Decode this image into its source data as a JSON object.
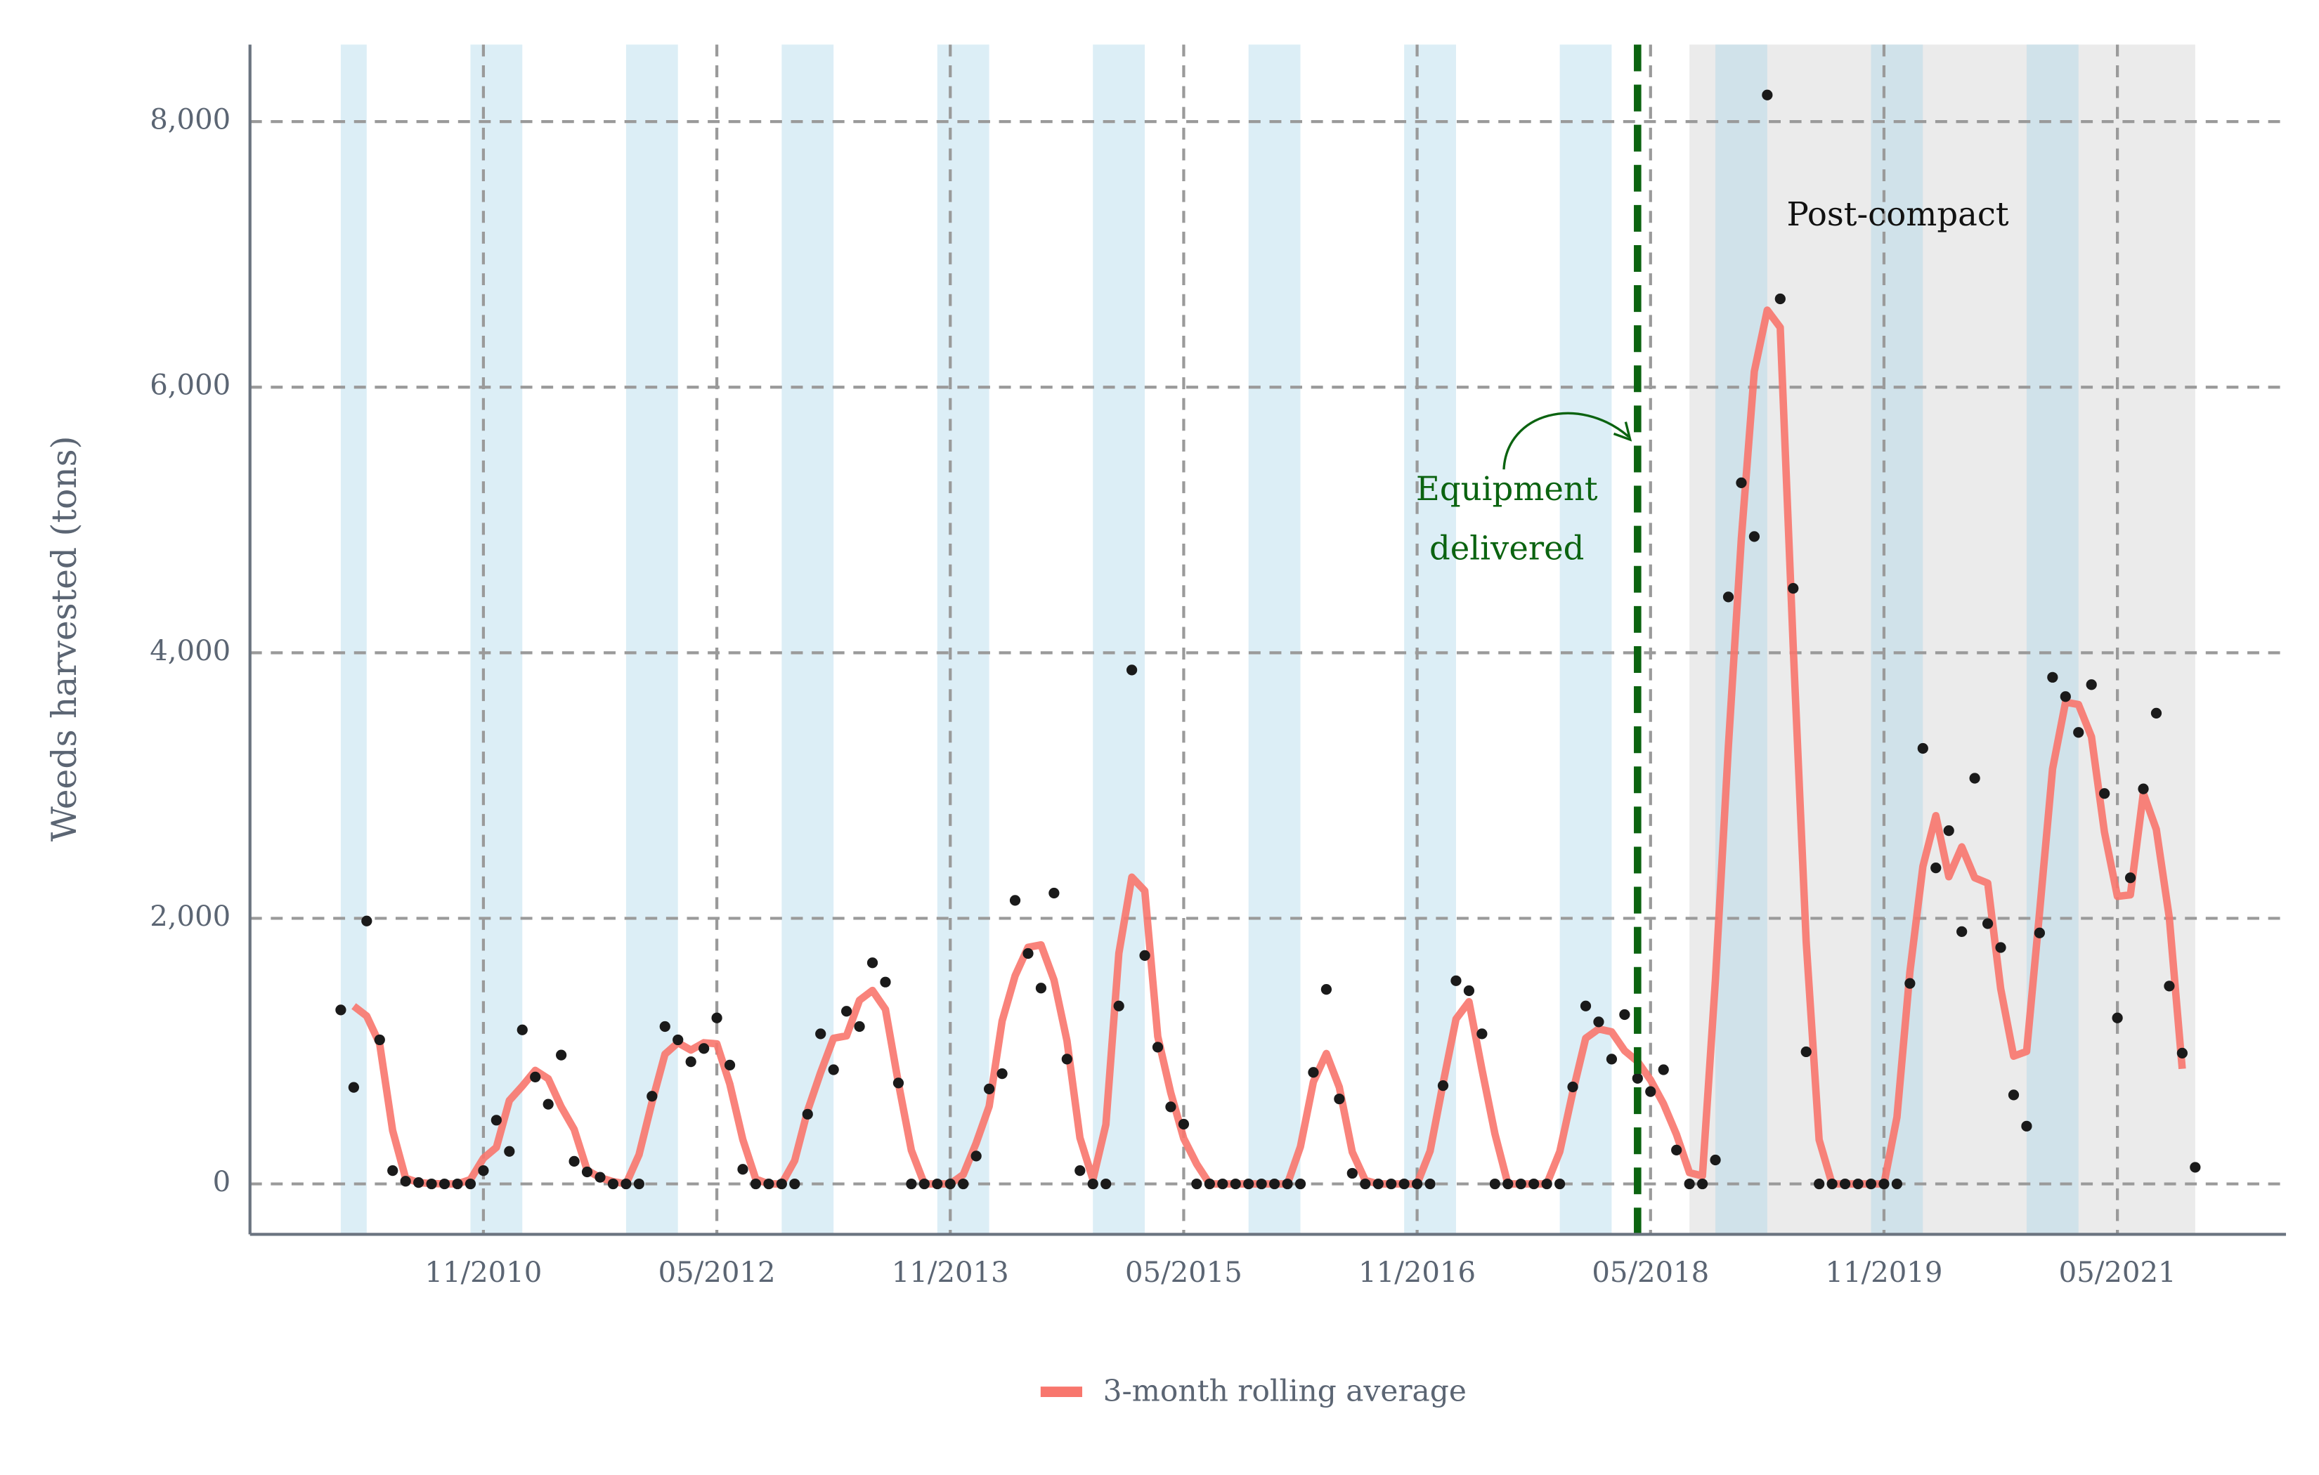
{
  "chart_data": {
    "type": "line",
    "y_label": "Weeds harvested (tons)",
    "x": [
      "12/2009",
      "01/2010",
      "02/2010",
      "03/2010",
      "04/2010",
      "05/2010",
      "06/2010",
      "07/2010",
      "08/2010",
      "09/2010",
      "10/2010",
      "11/2010",
      "12/2010",
      "01/2011",
      "02/2011",
      "03/2011",
      "04/2011",
      "05/2011",
      "06/2011",
      "07/2011",
      "08/2011",
      "09/2011",
      "10/2011",
      "11/2011",
      "12/2011",
      "01/2012",
      "02/2012",
      "03/2012",
      "04/2012",
      "05/2012",
      "06/2012",
      "07/2012",
      "08/2012",
      "09/2012",
      "10/2012",
      "11/2012",
      "12/2012",
      "01/2013",
      "02/2013",
      "03/2013",
      "04/2013",
      "05/2013",
      "06/2013",
      "07/2013",
      "08/2013",
      "09/2013",
      "10/2013",
      "11/2013",
      "12/2013",
      "01/2014",
      "02/2014",
      "03/2014",
      "04/2014",
      "05/2014",
      "06/2014",
      "07/2014",
      "08/2014",
      "09/2014",
      "10/2014",
      "11/2014",
      "12/2014",
      "01/2015",
      "02/2015",
      "03/2015",
      "04/2015",
      "05/2015",
      "06/2015",
      "07/2015",
      "08/2015",
      "09/2015",
      "10/2015",
      "11/2015",
      "12/2015",
      "01/2016",
      "02/2016",
      "03/2016",
      "04/2016",
      "05/2016",
      "06/2016",
      "07/2016",
      "08/2016",
      "09/2016",
      "10/2016",
      "11/2016",
      "12/2016",
      "01/2017",
      "02/2017",
      "03/2017",
      "04/2017",
      "05/2017",
      "06/2017",
      "07/2017",
      "08/2017",
      "09/2017",
      "10/2017",
      "11/2017",
      "12/2017",
      "01/2018",
      "02/2018",
      "03/2018",
      "04/2018",
      "05/2018",
      "06/2018",
      "07/2018",
      "08/2018",
      "09/2018",
      "10/2018",
      "11/2018",
      "12/2018",
      "01/2019",
      "02/2019",
      "03/2019",
      "04/2019",
      "05/2019",
      "06/2019",
      "07/2019",
      "08/2019",
      "09/2019",
      "10/2019",
      "11/2019",
      "12/2019",
      "01/2020",
      "02/2020",
      "03/2020",
      "04/2020",
      "05/2020",
      "06/2020",
      "07/2020",
      "08/2020",
      "09/2020",
      "10/2020",
      "11/2020",
      "12/2020",
      "01/2021",
      "02/2021",
      "03/2021",
      "04/2021",
      "05/2021",
      "06/2021",
      "07/2021",
      "08/2021",
      "09/2021",
      "10/2021",
      "11/2021"
    ],
    "points": {
      "color": "#1a1a1a",
      "values": [
        1310,
        727,
        1980,
        1085,
        100,
        20,
        10,
        0,
        0,
        0,
        0,
        100,
        480,
        245,
        1160,
        805,
        600,
        970,
        170,
        90,
        50,
        0,
        0,
        0,
        660,
        1185,
        1085,
        920,
        1020,
        1250,
        895,
        110,
        0,
        0,
        0,
        0,
        525,
        1130,
        860,
        1300,
        1185,
        1665,
        1520,
        760,
        0,
        0,
        0,
        0,
        0,
        210,
        715,
        830,
        2135,
        1735,
        1475,
        2190,
        940,
        100,
        0,
        0,
        1340,
        3870,
        1720,
        1030,
        580,
        450,
        0,
        0,
        0,
        0,
        0,
        0,
        0,
        0,
        0,
        840,
        1465,
        640,
        80,
        0,
        0,
        0,
        0,
        0,
        0,
        740,
        1530,
        1455,
        1130,
        0,
        0,
        0,
        0,
        0,
        0,
        730,
        1340,
        1220,
        940,
        1275,
        795,
        695,
        860,
        255,
        0,
        0,
        180,
        4420,
        5280,
        4875,
        8200,
        6665,
        4485,
        995,
        0,
        0,
        0,
        0,
        0,
        0,
        0,
        1510,
        3280,
        2380,
        2660,
        1900,
        3055,
        1960,
        1780,
        670,
        435,
        1890,
        3815,
        3670,
        3400,
        3760,
        2940,
        1250,
        2305,
        2975,
        3545,
        1490,
        985,
        125
      ]
    },
    "series": [
      {
        "name": "3-month rolling average",
        "color": "#f8766d",
        "values": [
          null,
          1339,
          1264,
          1055,
          402,
          43,
          10,
          3,
          0,
          0,
          33,
          193,
          275,
          628,
          737,
          855,
          792,
          580,
          410,
          103,
          47,
          17,
          0,
          220,
          615,
          977,
          1063,
          1008,
          1063,
          1055,
          752,
          335,
          37,
          0,
          0,
          175,
          552,
          838,
          1097,
          1115,
          1383,
          1457,
          1315,
          760,
          253,
          0,
          0,
          0,
          70,
          308,
          585,
          1227,
          1567,
          1782,
          1800,
          1535,
          1077,
          347,
          33,
          447,
          1737,
          2310,
          2207,
          1110,
          687,
          343,
          150,
          0,
          0,
          0,
          0,
          0,
          0,
          0,
          280,
          768,
          982,
          728,
          240,
          27,
          0,
          0,
          0,
          0,
          247,
          757,
          1242,
          1372,
          862,
          377,
          0,
          0,
          0,
          0,
          243,
          690,
          1097,
          1167,
          1145,
          1003,
          922,
          783,
          603,
          372,
          85,
          60,
          1533,
          3293,
          4858,
          6118,
          6580,
          6450,
          4048,
          1827,
          332,
          0,
          0,
          0,
          0,
          0,
          503,
          1597,
          2390,
          2773,
          2313,
          2538,
          2305,
          2265,
          1470,
          962,
          998,
          2047,
          3125,
          3628,
          3610,
          3367,
          2650,
          2165,
          2177,
          2942,
          2670,
          2007,
          867,
          null
        ]
      }
    ],
    "xlim": [
      "05/2009",
      "06/2022"
    ],
    "xticks": [
      "11/2010",
      "05/2012",
      "11/2013",
      "05/2015",
      "11/2016",
      "05/2018",
      "11/2019",
      "05/2021"
    ],
    "ylim": [
      -380,
      8580
    ],
    "yticks": [
      0,
      {
        "value": 2000,
        "label": "2,000"
      },
      {
        "value": 4000,
        "label": "4,000"
      },
      {
        "value": 6000,
        "label": "6,000"
      },
      {
        "value": 8000,
        "label": "8,000"
      }
    ],
    "grid": true,
    "shaded_color": "#a8d4e8",
    "shaded_periods": [
      [
        "12/2009",
        "02/2010"
      ],
      [
        "10/2010",
        "02/2011"
      ],
      [
        "10/2011",
        "02/2012"
      ],
      [
        "10/2012",
        "02/2013"
      ],
      [
        "10/2013",
        "02/2014"
      ],
      [
        "10/2014",
        "02/2015"
      ],
      [
        "10/2015",
        "02/2016"
      ],
      [
        "10/2016",
        "02/2017"
      ],
      [
        "10/2017",
        "02/2018"
      ],
      [
        "10/2018",
        "02/2019"
      ],
      [
        "10/2019",
        "02/2020"
      ],
      [
        "10/2020",
        "02/2021"
      ]
    ],
    "highlight_period": {
      "label": "Post-compact",
      "start": "08/2018",
      "end": "11/2021",
      "color": "#ebebeb"
    },
    "event": {
      "label_lines": [
        "Equipment",
        "delivered"
      ],
      "date": "04/2018",
      "color": "#0b6310"
    },
    "legend": "bottom"
  }
}
